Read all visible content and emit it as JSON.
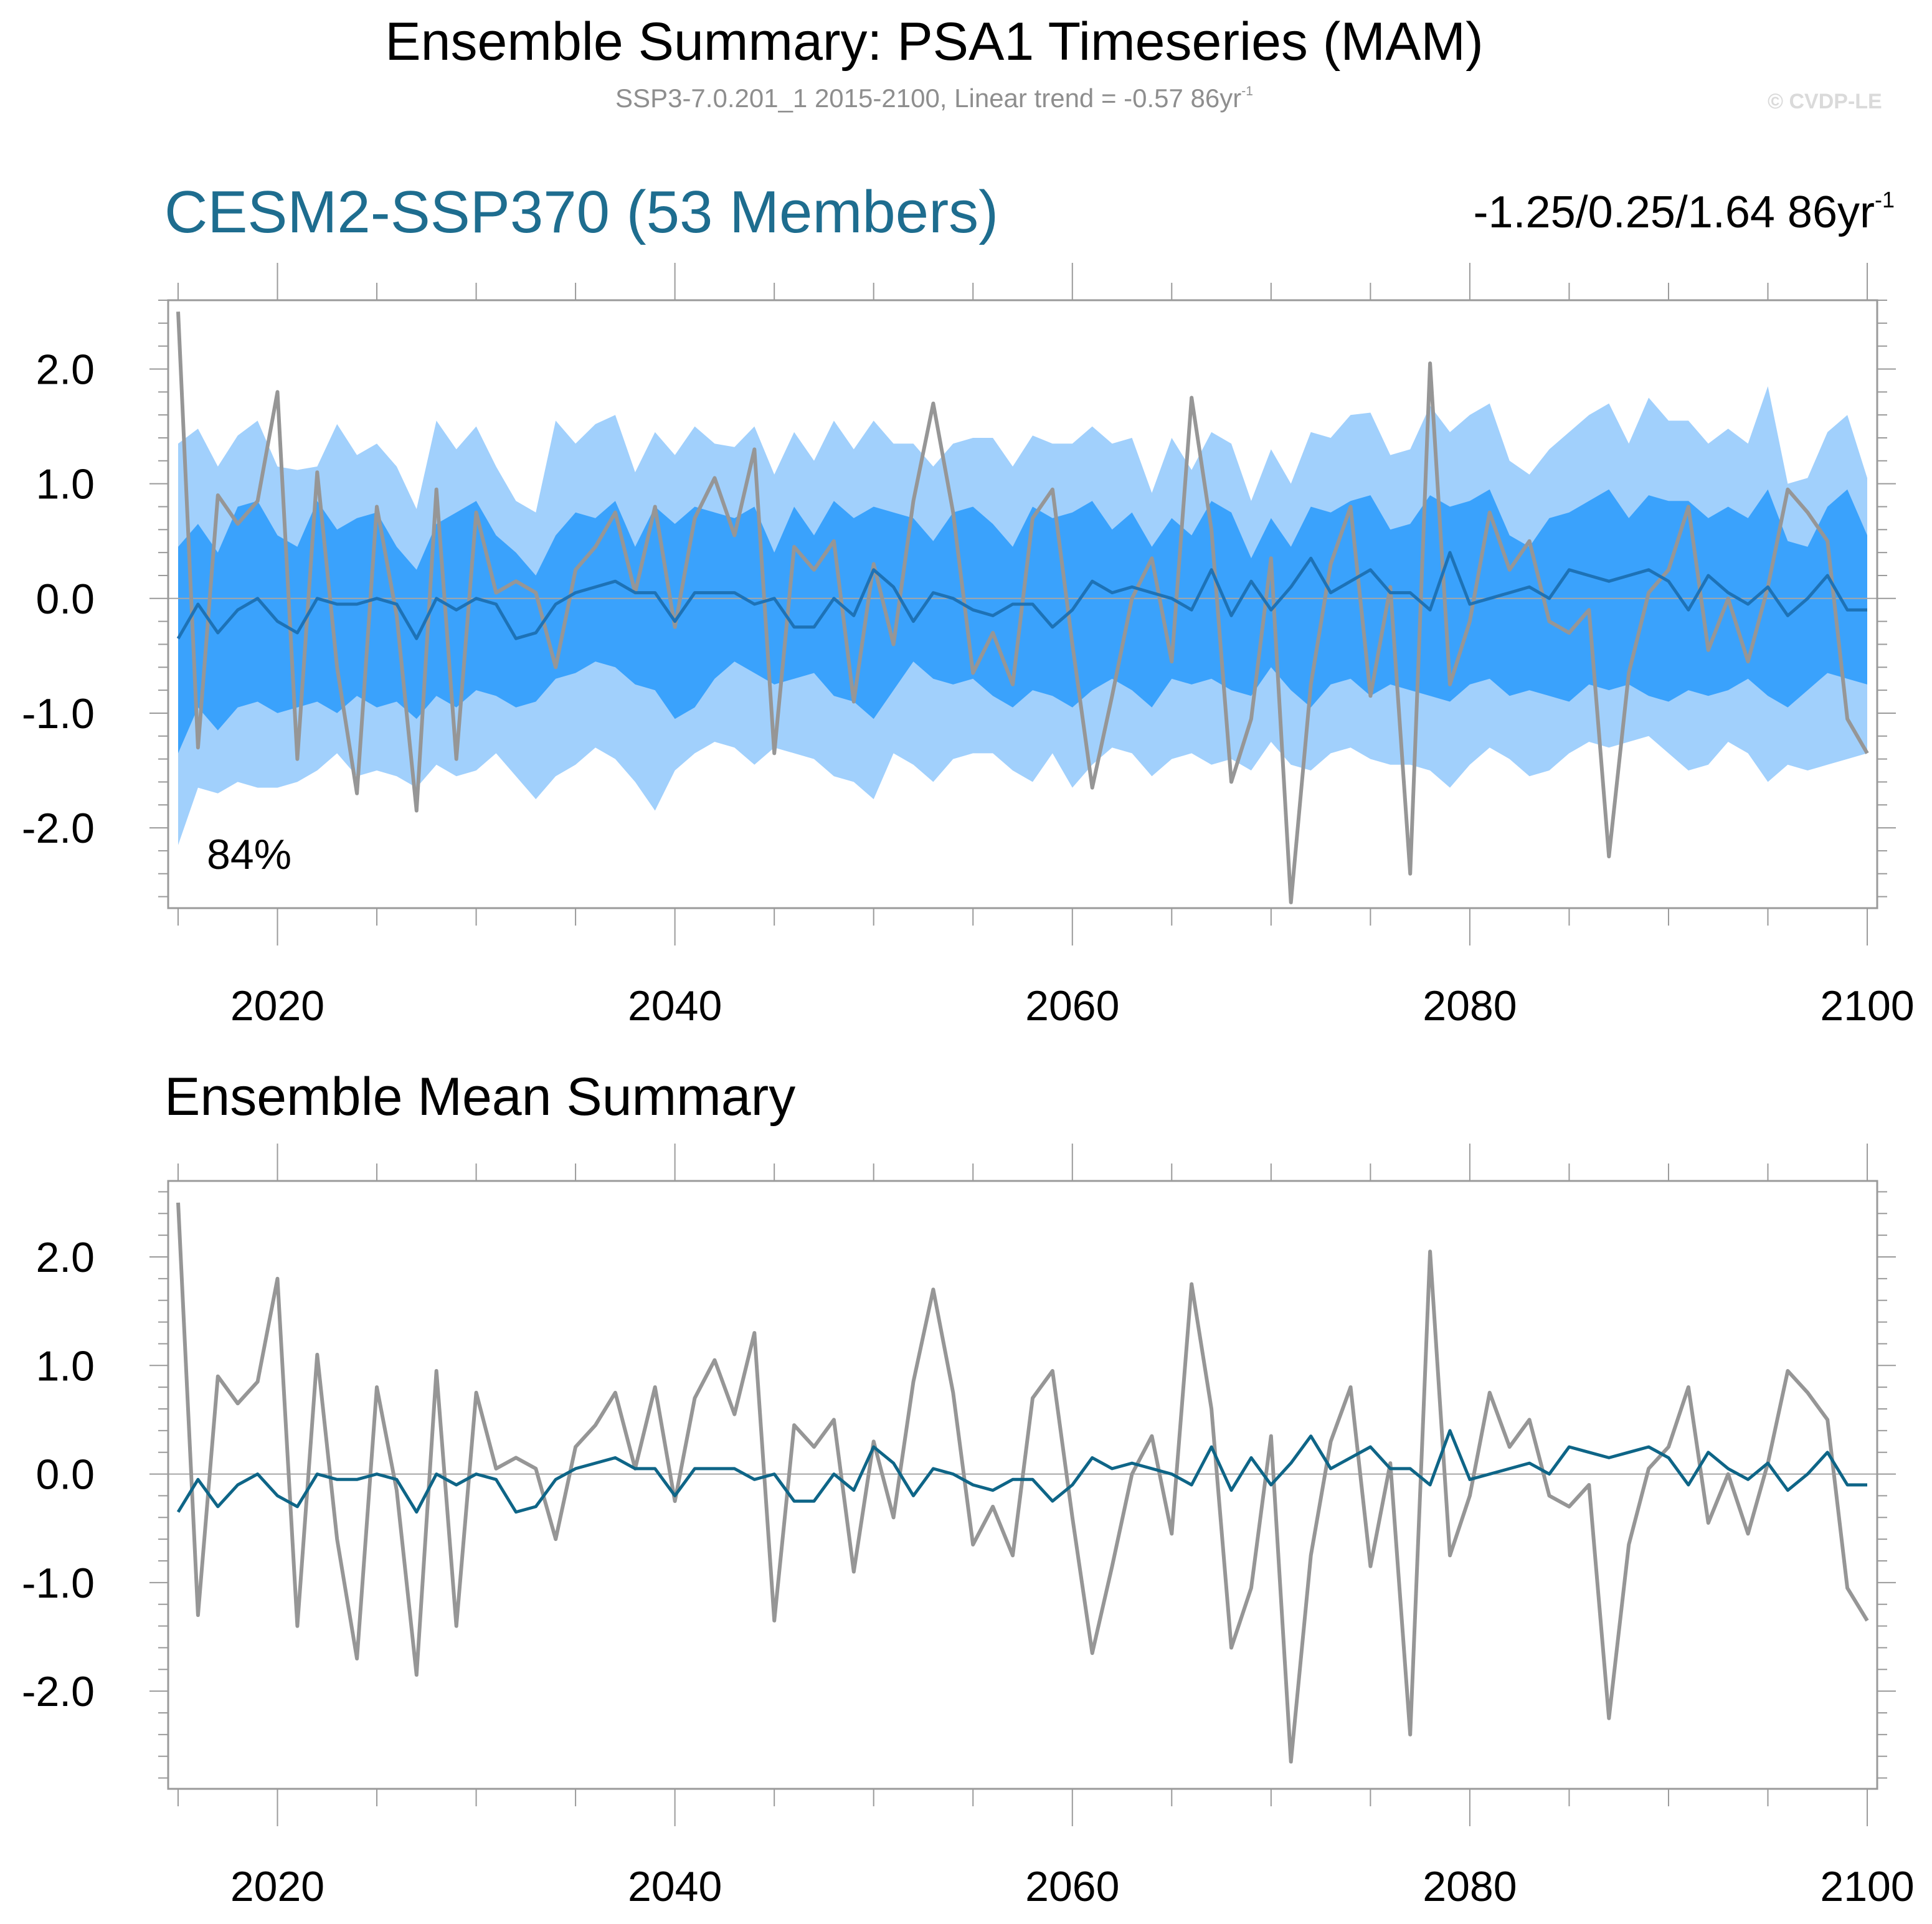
{
  "header": {
    "title": "Ensemble Summary: PSA1 Timeseries (MAM)",
    "subtitle_main": "SSP3-7.0.201_1 2015-2100, Linear trend = -0.57 86yr",
    "subtitle_sup": "-1",
    "credit": "© CVDP-LE"
  },
  "colors": {
    "outer_band": "#a1d0fc",
    "inner_band": "#3aa2fc",
    "ensemble_mean_top": "#1d72b6",
    "ensemble_mean_bottom": "#0e6587",
    "observations": "#969696",
    "zero_line": "#a6a6a6",
    "title_teal": "#1e6d8f"
  },
  "top_panel": {
    "title": "CESM2-SSP370 (53 Members)",
    "trend_main": "-1.25/0.25/1.64 86yr",
    "trend_sup": "-1",
    "percent_label": "84%"
  },
  "bottom_panel": {
    "title": "Ensemble Mean Summary"
  },
  "chart_data": [
    {
      "type": "area",
      "panel": "top",
      "title": "CESM2-SSP370 (53 Members)",
      "xlim": [
        2014.5,
        2100.5
      ],
      "ylim": [
        -2.7,
        2.6
      ],
      "x_ticks": [
        2020,
        2040,
        2060,
        2080,
        2100
      ],
      "x_tick_labels": [
        "2020",
        "2040",
        "2060",
        "2080",
        "2100"
      ],
      "y_ticks": [
        2.0,
        1.0,
        0.0,
        -1.0,
        -2.0
      ],
      "y_tick_labels": [
        "2.0",
        "1.0",
        "0.0",
        "-1.0",
        "-2.0"
      ],
      "x_start": 2015,
      "x_end": 2100,
      "outer_upper": [
        1.35,
        1.48,
        1.15,
        1.42,
        1.55,
        1.15,
        1.12,
        1.15,
        1.52,
        1.25,
        1.35,
        1.15,
        0.78,
        1.55,
        1.3,
        1.5,
        1.15,
        0.85,
        0.75,
        1.55,
        1.35,
        1.52,
        1.6,
        1.1,
        1.45,
        1.25,
        1.5,
        1.35,
        1.32,
        1.5,
        1.08,
        1.45,
        1.2,
        1.55,
        1.3,
        1.55,
        1.35,
        1.35,
        1.15,
        1.35,
        1.4,
        1.4,
        1.15,
        1.42,
        1.35,
        1.35,
        1.5,
        1.35,
        1.4,
        0.92,
        1.4,
        1.12,
        1.45,
        1.35,
        0.85,
        1.3,
        1.0,
        1.45,
        1.4,
        1.6,
        1.62,
        1.25,
        1.3,
        1.68,
        1.45,
        1.6,
        1.7,
        1.2,
        1.08,
        1.3,
        1.45,
        1.6,
        1.7,
        1.35,
        1.75,
        1.55,
        1.55,
        1.35,
        1.48,
        1.35,
        1.85,
        1.0,
        1.05,
        1.45,
        1.6,
        1.05
      ],
      "inner_upper": [
        0.45,
        0.65,
        0.4,
        0.8,
        0.85,
        0.55,
        0.45,
        0.85,
        0.6,
        0.7,
        0.75,
        0.45,
        0.25,
        0.65,
        0.75,
        0.85,
        0.55,
        0.4,
        0.2,
        0.55,
        0.75,
        0.7,
        0.85,
        0.45,
        0.8,
        0.65,
        0.8,
        0.75,
        0.7,
        0.8,
        0.4,
        0.8,
        0.55,
        0.85,
        0.7,
        0.8,
        0.75,
        0.7,
        0.5,
        0.75,
        0.8,
        0.65,
        0.45,
        0.8,
        0.7,
        0.75,
        0.85,
        0.6,
        0.75,
        0.45,
        0.7,
        0.55,
        0.85,
        0.75,
        0.35,
        0.7,
        0.45,
        0.8,
        0.75,
        0.85,
        0.9,
        0.6,
        0.65,
        0.9,
        0.8,
        0.85,
        0.95,
        0.55,
        0.45,
        0.7,
        0.75,
        0.85,
        0.95,
        0.7,
        0.9,
        0.85,
        0.85,
        0.7,
        0.8,
        0.7,
        0.95,
        0.5,
        0.45,
        0.8,
        0.95,
        0.55
      ],
      "inner_lower": [
        -1.35,
        -0.95,
        -1.15,
        -0.95,
        -0.9,
        -1.0,
        -0.95,
        -0.9,
        -1.0,
        -0.85,
        -0.95,
        -0.9,
        -1.05,
        -0.85,
        -0.95,
        -0.8,
        -0.85,
        -0.95,
        -0.9,
        -0.7,
        -0.65,
        -0.55,
        -0.6,
        -0.75,
        -0.8,
        -1.05,
        -0.95,
        -0.7,
        -0.55,
        -0.65,
        -0.75,
        -0.7,
        -0.65,
        -0.85,
        -0.9,
        -1.05,
        -0.8,
        -0.55,
        -0.7,
        -0.75,
        -0.7,
        -0.85,
        -0.95,
        -0.8,
        -0.85,
        -0.95,
        -0.8,
        -0.7,
        -0.8,
        -0.95,
        -0.7,
        -0.75,
        -0.7,
        -0.8,
        -0.85,
        -0.6,
        -0.8,
        -0.95,
        -0.75,
        -0.7,
        -0.85,
        -0.75,
        -0.8,
        -0.85,
        -0.9,
        -0.75,
        -0.7,
        -0.85,
        -0.8,
        -0.85,
        -0.9,
        -0.75,
        -0.8,
        -0.75,
        -0.85,
        -0.9,
        -0.8,
        -0.85,
        -0.8,
        -0.7,
        -0.85,
        -0.95,
        -0.8,
        -0.65,
        -0.7,
        -0.75
      ],
      "outer_lower": [
        -2.15,
        -1.65,
        -1.7,
        -1.6,
        -1.65,
        -1.65,
        -1.6,
        -1.5,
        -1.35,
        -1.55,
        -1.5,
        -1.55,
        -1.65,
        -1.45,
        -1.55,
        -1.5,
        -1.35,
        -1.55,
        -1.75,
        -1.55,
        -1.45,
        -1.3,
        -1.4,
        -1.6,
        -1.85,
        -1.5,
        -1.35,
        -1.25,
        -1.3,
        -1.45,
        -1.3,
        -1.35,
        -1.4,
        -1.55,
        -1.6,
        -1.75,
        -1.35,
        -1.45,
        -1.6,
        -1.4,
        -1.35,
        -1.35,
        -1.5,
        -1.6,
        -1.35,
        -1.65,
        -1.45,
        -1.3,
        -1.35,
        -1.55,
        -1.4,
        -1.35,
        -1.45,
        -1.4,
        -1.5,
        -1.25,
        -1.45,
        -1.5,
        -1.35,
        -1.3,
        -1.4,
        -1.45,
        -1.45,
        -1.5,
        -1.65,
        -1.45,
        -1.3,
        -1.4,
        -1.55,
        -1.5,
        -1.35,
        -1.25,
        -1.3,
        -1.25,
        -1.2,
        -1.35,
        -1.5,
        -1.45,
        -1.25,
        -1.35,
        -1.6,
        -1.45,
        -1.5,
        -1.45,
        -1.4,
        -1.35
      ],
      "series": [
        {
          "values": [
            2.5,
            -1.3,
            0.9,
            0.65,
            0.85,
            1.8,
            -1.4,
            1.1,
            -0.6,
            -1.7,
            0.8,
            -0.15,
            -1.85,
            0.95,
            -1.4,
            0.75,
            0.05,
            0.15,
            0.05,
            -0.6,
            0.25,
            0.45,
            0.75,
            0.05,
            0.8,
            -0.25,
            0.7,
            1.05,
            0.55,
            1.3,
            -1.35,
            0.45,
            0.25,
            0.5,
            -0.9,
            0.3,
            -0.4,
            0.85,
            1.7,
            0.75,
            -0.65,
            -0.3,
            -0.75,
            0.7,
            0.95,
            -0.4,
            -1.65,
            -0.85,
            0.0,
            0.35,
            -0.55,
            1.75,
            0.6,
            -1.6,
            -1.05,
            0.35,
            -2.65,
            -0.75,
            0.3,
            0.8,
            -0.85,
            0.1,
            -2.4,
            2.05,
            -0.75,
            -0.2,
            0.75,
            0.25,
            0.5,
            -0.2,
            -0.3,
            -0.1,
            -2.25,
            -0.65,
            0.05,
            0.25,
            0.8,
            -0.45,
            0.0,
            -0.55,
            0.1,
            0.95,
            0.75,
            0.5,
            -1.05,
            -1.35
          ]
        },
        {
          "values": [
            -0.35,
            -0.05,
            -0.3,
            -0.1,
            0.0,
            -0.2,
            -0.3,
            0.0,
            -0.05,
            -0.05,
            0.0,
            -0.05,
            -0.35,
            0.0,
            -0.1,
            0.0,
            -0.05,
            -0.35,
            -0.3,
            -0.05,
            0.05,
            0.1,
            0.15,
            0.05,
            0.05,
            -0.2,
            0.05,
            0.05,
            0.05,
            -0.05,
            0.0,
            -0.25,
            -0.25,
            0.0,
            -0.15,
            0.25,
            0.1,
            -0.2,
            0.05,
            0.0,
            -0.1,
            -0.15,
            -0.05,
            -0.05,
            -0.25,
            -0.1,
            0.15,
            0.05,
            0.1,
            0.05,
            0.0,
            -0.1,
            0.25,
            -0.15,
            0.15,
            -0.1,
            0.1,
            0.35,
            0.05,
            0.15,
            0.25,
            0.05,
            0.05,
            -0.1,
            0.4,
            -0.05,
            0.0,
            0.05,
            0.1,
            0.0,
            0.25,
            0.2,
            0.15,
            0.2,
            0.25,
            0.15,
            -0.1,
            0.2,
            0.05,
            -0.05,
            0.1,
            -0.15,
            0.0,
            0.2,
            -0.1,
            -0.1
          ]
        }
      ]
    },
    {
      "type": "line",
      "panel": "bottom",
      "title": "Ensemble Mean Summary",
      "xlim": [
        2014.5,
        2100.5
      ],
      "ylim": [
        -2.9,
        2.7
      ],
      "x_ticks": [
        2020,
        2040,
        2060,
        2080,
        2100
      ],
      "x_tick_labels": [
        "2020",
        "2040",
        "2060",
        "2080",
        "2100"
      ],
      "y_ticks": [
        2.0,
        1.0,
        0.0,
        -1.0,
        -2.0
      ],
      "y_tick_labels": [
        "2.0",
        "1.0",
        "0.0",
        "-1.0",
        "-2.0"
      ],
      "x_start": 2015,
      "x_end": 2100,
      "series": [
        {
          "values": [
            2.5,
            -1.3,
            0.9,
            0.65,
            0.85,
            1.8,
            -1.4,
            1.1,
            -0.6,
            -1.7,
            0.8,
            -0.15,
            -1.85,
            0.95,
            -1.4,
            0.75,
            0.05,
            0.15,
            0.05,
            -0.6,
            0.25,
            0.45,
            0.75,
            0.05,
            0.8,
            -0.25,
            0.7,
            1.05,
            0.55,
            1.3,
            -1.35,
            0.45,
            0.25,
            0.5,
            -0.9,
            0.3,
            -0.4,
            0.85,
            1.7,
            0.75,
            -0.65,
            -0.3,
            -0.75,
            0.7,
            0.95,
            -0.4,
            -1.65,
            -0.85,
            0.0,
            0.35,
            -0.55,
            1.75,
            0.6,
            -1.6,
            -1.05,
            0.35,
            -2.65,
            -0.75,
            0.3,
            0.8,
            -0.85,
            0.1,
            -2.4,
            2.05,
            -0.75,
            -0.2,
            0.75,
            0.25,
            0.5,
            -0.2,
            -0.3,
            -0.1,
            -2.25,
            -0.65,
            0.05,
            0.25,
            0.8,
            -0.45,
            0.0,
            -0.55,
            0.1,
            0.95,
            0.75,
            0.5,
            -1.05,
            -1.35
          ]
        },
        {
          "values": [
            -0.35,
            -0.05,
            -0.3,
            -0.1,
            0.0,
            -0.2,
            -0.3,
            0.0,
            -0.05,
            -0.05,
            0.0,
            -0.05,
            -0.35,
            0.0,
            -0.1,
            0.0,
            -0.05,
            -0.35,
            -0.3,
            -0.05,
            0.05,
            0.1,
            0.15,
            0.05,
            0.05,
            -0.2,
            0.05,
            0.05,
            0.05,
            -0.05,
            0.0,
            -0.25,
            -0.25,
            0.0,
            -0.15,
            0.25,
            0.1,
            -0.2,
            0.05,
            0.0,
            -0.1,
            -0.15,
            -0.05,
            -0.05,
            -0.25,
            -0.1,
            0.15,
            0.05,
            0.1,
            0.05,
            0.0,
            -0.1,
            0.25,
            -0.15,
            0.15,
            -0.1,
            0.1,
            0.35,
            0.05,
            0.15,
            0.25,
            0.05,
            0.05,
            -0.1,
            0.4,
            -0.05,
            0.0,
            0.05,
            0.1,
            0.0,
            0.25,
            0.2,
            0.15,
            0.2,
            0.25,
            0.15,
            -0.1,
            0.2,
            0.05,
            -0.05,
            0.1,
            -0.15,
            0.0,
            0.2,
            -0.1,
            -0.1
          ]
        }
      ]
    }
  ]
}
